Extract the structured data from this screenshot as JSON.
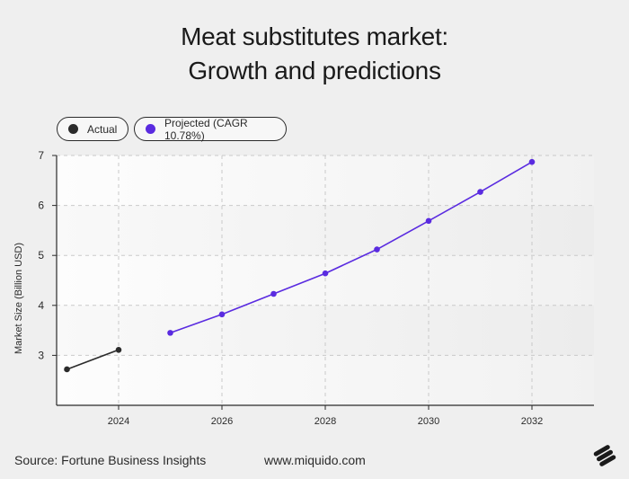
{
  "title_line1": "Meat substitutes market:",
  "title_line2": "Growth and predictions",
  "legend": {
    "actual_label": "Actual",
    "projected_label": "Projected (CAGR 10.78%)"
  },
  "footer": {
    "source": "Source: Fortune Business Insights",
    "website": "www.miquido.com"
  },
  "logo_icon": "miquido-logo-icon",
  "colors": {
    "actual": "#2b2b2b",
    "projected": "#5a2be0",
    "background": "#efefef"
  },
  "chart_data": {
    "type": "line",
    "xlabel": "",
    "ylabel": "Market Size (Billion USD)",
    "xlim": [
      2022.8,
      2033.2
    ],
    "ylim": [
      2.0,
      7.0
    ],
    "xticks": [
      2024,
      2026,
      2028,
      2030,
      2032
    ],
    "yticks": [
      3,
      4,
      5,
      6,
      7
    ],
    "grid": true,
    "legend_position": "top-left",
    "series": [
      {
        "name": "Actual",
        "color": "#2b2b2b",
        "x": [
          2023,
          2024
        ],
        "y": [
          2.72,
          3.11
        ]
      },
      {
        "name": "Projected (CAGR 10.78%)",
        "color": "#5a2be0",
        "x": [
          2025,
          2026,
          2027,
          2028,
          2029,
          2030,
          2031,
          2032
        ],
        "y": [
          3.45,
          3.82,
          4.23,
          4.64,
          5.12,
          5.69,
          6.27,
          6.87
        ]
      }
    ]
  }
}
